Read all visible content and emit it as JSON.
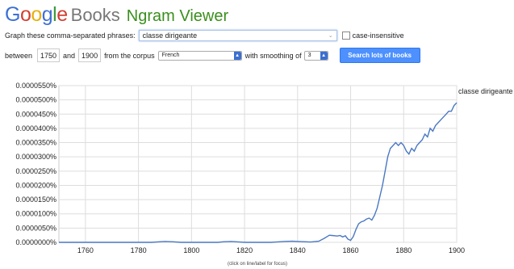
{
  "header": {
    "logo_letters": [
      "G",
      "o",
      "o",
      "g",
      "l",
      "e"
    ],
    "logo_colors": [
      "#3d6fd6",
      "#d23f31",
      "#e8b00b",
      "#3d6fd6",
      "#3a9a3c",
      "#d23f31"
    ],
    "books_word": "Books",
    "app_title": "Ngram Viewer"
  },
  "form": {
    "graph_label": "Graph these comma-separated phrases:",
    "phrase_value": "classe dirigeante",
    "case_label": "case-insensitive",
    "between_label": "between",
    "year_start": "1750",
    "and_label": "and",
    "year_end": "1900",
    "corpus_label": "from the corpus",
    "corpus_value": "French",
    "smoothing_label": "with smoothing of",
    "smoothing_value": "3",
    "search_button": "Search lots of books"
  },
  "footer_note": "(click on line/label for focus)",
  "chart_data": {
    "type": "line",
    "xlim": [
      1750,
      1900
    ],
    "ylim": [
      0,
      5.5e-06
    ],
    "x_ticks": [
      "1760",
      "1780",
      "1800",
      "1820",
      "1840",
      "1860",
      "1880",
      "1900"
    ],
    "y_ticks": [
      "0.0000000%",
      "0.0000050%",
      "0.0000100%",
      "0.0000150%",
      "0.0000200%",
      "0.0000250%",
      "0.0000300%",
      "0.0000350%",
      "0.0000400%",
      "0.0000450%",
      "0.0000500%",
      "0.0000550%"
    ],
    "grid": true,
    "line_color": "#4a78c2",
    "series": [
      {
        "name": "classe dirigeante",
        "x": [
          1750,
          1760,
          1770,
          1780,
          1785,
          1788,
          1790,
          1793,
          1796,
          1800,
          1805,
          1810,
          1812,
          1815,
          1818,
          1820,
          1825,
          1830,
          1832,
          1835,
          1838,
          1840,
          1843,
          1845,
          1848,
          1850,
          1852,
          1853,
          1855,
          1856,
          1857,
          1858,
          1859,
          1860,
          1861,
          1862,
          1863,
          1864,
          1865,
          1866,
          1867,
          1868,
          1869,
          1870,
          1871,
          1872,
          1873,
          1874,
          1875,
          1876,
          1877,
          1878,
          1879,
          1880,
          1881,
          1882,
          1883,
          1884,
          1885,
          1886,
          1887,
          1888,
          1889,
          1890,
          1891,
          1892,
          1893,
          1894,
          1895,
          1896,
          1897,
          1898,
          1899,
          1900
        ],
        "y": [
          0,
          0,
          0,
          0,
          0,
          2e-08,
          3e-08,
          2e-08,
          0,
          0,
          0,
          0,
          2e-08,
          3e-08,
          1e-08,
          0,
          0,
          0,
          1e-08,
          3e-08,
          4e-08,
          3e-08,
          2e-08,
          1e-08,
          4e-08,
          1.4e-07,
          2.5e-07,
          2.4e-07,
          2.2e-07,
          2.4e-07,
          1.9e-07,
          2.3e-07,
          1.1e-07,
          7e-08,
          2e-07,
          4.5e-07,
          6.5e-07,
          7.2e-07,
          7.5e-07,
          8.2e-07,
          8.5e-07,
          7.8e-07,
          9.5e-07,
          1.2e-06,
          1.6e-06,
          2e-06,
          2.5e-06,
          3e-06,
          3.3e-06,
          3.4e-06,
          3.5e-06,
          3.4e-06,
          3.5e-06,
          3.4e-06,
          3.2e-06,
          3.1e-06,
          3.3e-06,
          3.2e-06,
          3.4e-06,
          3.5e-06,
          3.6e-06,
          3.8e-06,
          3.7e-06,
          4e-06,
          3.9e-06,
          4.1e-06,
          4.2e-06,
          4.3e-06,
          4.4e-06,
          4.5e-06,
          4.6e-06,
          4.6e-06,
          4.8e-06,
          4.9e-06
        ]
      }
    ]
  }
}
